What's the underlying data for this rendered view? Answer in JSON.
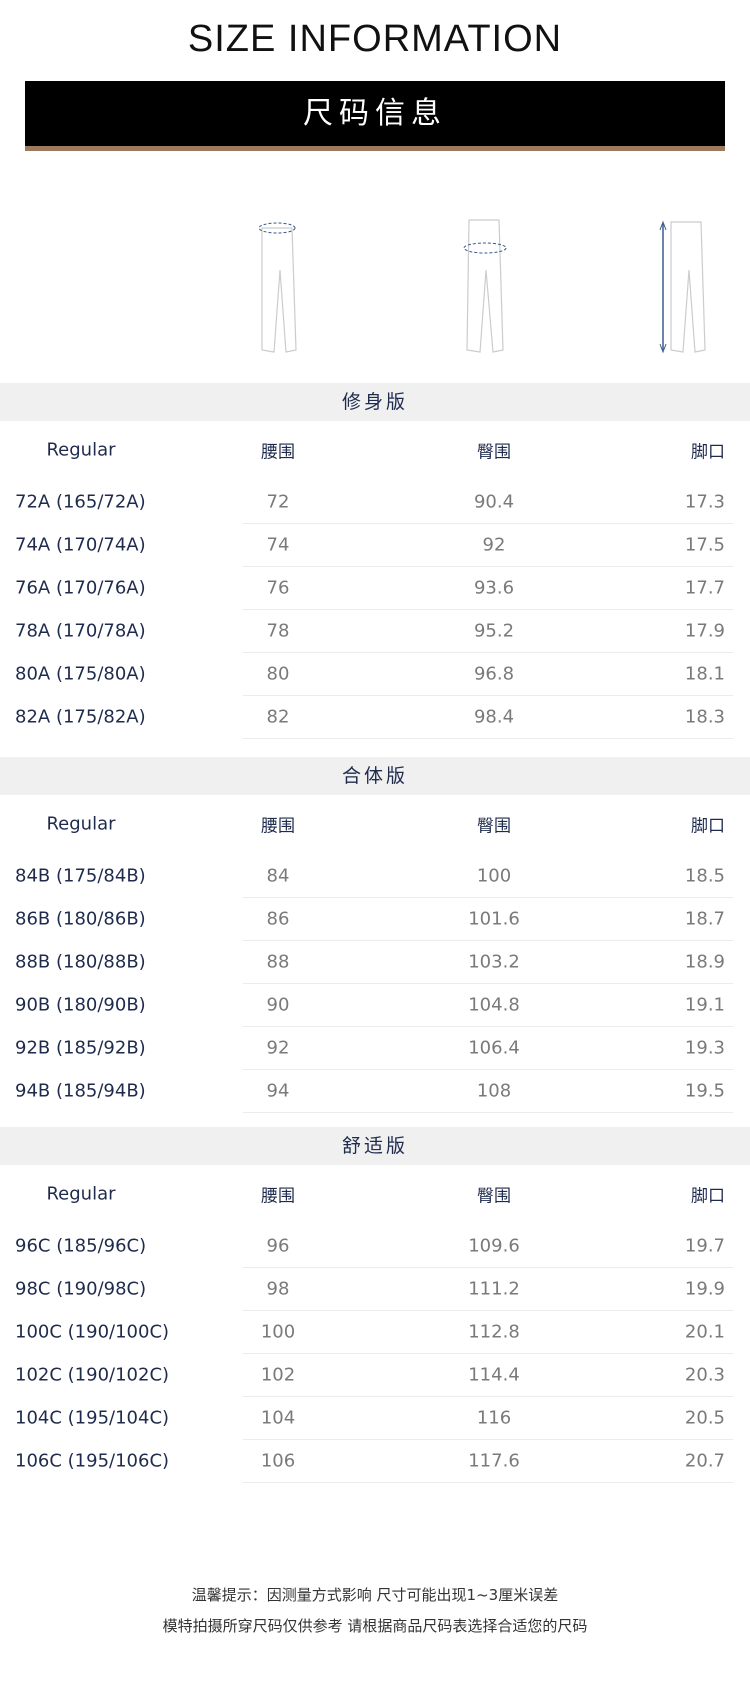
{
  "header": {
    "title": "SIZE INFORMATION",
    "banner": "尺码信息"
  },
  "figures": [
    {
      "icon": "pants-waist-measure-icon"
    },
    {
      "icon": "pants-hip-measure-icon"
    },
    {
      "icon": "pants-length-measure-icon"
    }
  ],
  "columns": {
    "size": "Regular",
    "waist": "腰围",
    "hip": "臀围",
    "hem": "脚口"
  },
  "sections": [
    {
      "title": "修身版",
      "rows": [
        {
          "size": "72A (165/72A)",
          "waist": "72",
          "hip": "90.4",
          "hem": "17.3"
        },
        {
          "size": "74A (170/74A)",
          "waist": "74",
          "hip": "92",
          "hem": "17.5"
        },
        {
          "size": "76A (170/76A)",
          "waist": "76",
          "hip": "93.6",
          "hem": "17.7"
        },
        {
          "size": "78A (170/78A)",
          "waist": "78",
          "hip": "95.2",
          "hem": "17.9"
        },
        {
          "size": "80A (175/80A)",
          "waist": "80",
          "hip": "96.8",
          "hem": "18.1"
        },
        {
          "size": "82A (175/82A)",
          "waist": "82",
          "hip": "98.4",
          "hem": "18.3"
        }
      ]
    },
    {
      "title": "合体版",
      "rows": [
        {
          "size": "84B (175/84B)",
          "waist": "84",
          "hip": "100",
          "hem": "18.5"
        },
        {
          "size": "86B (180/86B)",
          "waist": "86",
          "hip": "101.6",
          "hem": "18.7"
        },
        {
          "size": "88B (180/88B)",
          "waist": "88",
          "hip": "103.2",
          "hem": "18.9"
        },
        {
          "size": "90B (180/90B)",
          "waist": "90",
          "hip": "104.8",
          "hem": "19.1"
        },
        {
          "size": "92B (185/92B)",
          "waist": "92",
          "hip": "106.4",
          "hem": "19.3"
        },
        {
          "size": "94B (185/94B)",
          "waist": "94",
          "hip": "108",
          "hem": "19.5"
        }
      ]
    },
    {
      "title": "舒适版",
      "rows": [
        {
          "size": "96C (185/96C)",
          "waist": "96",
          "hip": "109.6",
          "hem": "19.7"
        },
        {
          "size": "98C (190/98C)",
          "waist": "98",
          "hip": "111.2",
          "hem": "19.9"
        },
        {
          "size": "100C (190/100C)",
          "waist": "100",
          "hip": "112.8",
          "hem": "20.1"
        },
        {
          "size": "102C (190/102C)",
          "waist": "102",
          "hip": "114.4",
          "hem": "20.3"
        },
        {
          "size": "104C (195/104C)",
          "waist": "104",
          "hip": "116",
          "hem": "20.5"
        },
        {
          "size": "106C (195/106C)",
          "waist": "106",
          "hip": "117.6",
          "hem": "20.7"
        }
      ]
    }
  ],
  "footer": {
    "line1": "温馨提示：因测量方式影响 尺寸可能出现1~3厘米误差",
    "line2": "模特拍摄所穿尺码仅供参考 请根据商品尺码表选择合适您的尺码"
  },
  "colors": {
    "banner": "#000000",
    "banner_underline": "#9b7a5e",
    "label": "#1f2b4d",
    "value": "#7a7a7a",
    "section_bg": "#f0f0f0",
    "measure": "#3a5a8c"
  }
}
